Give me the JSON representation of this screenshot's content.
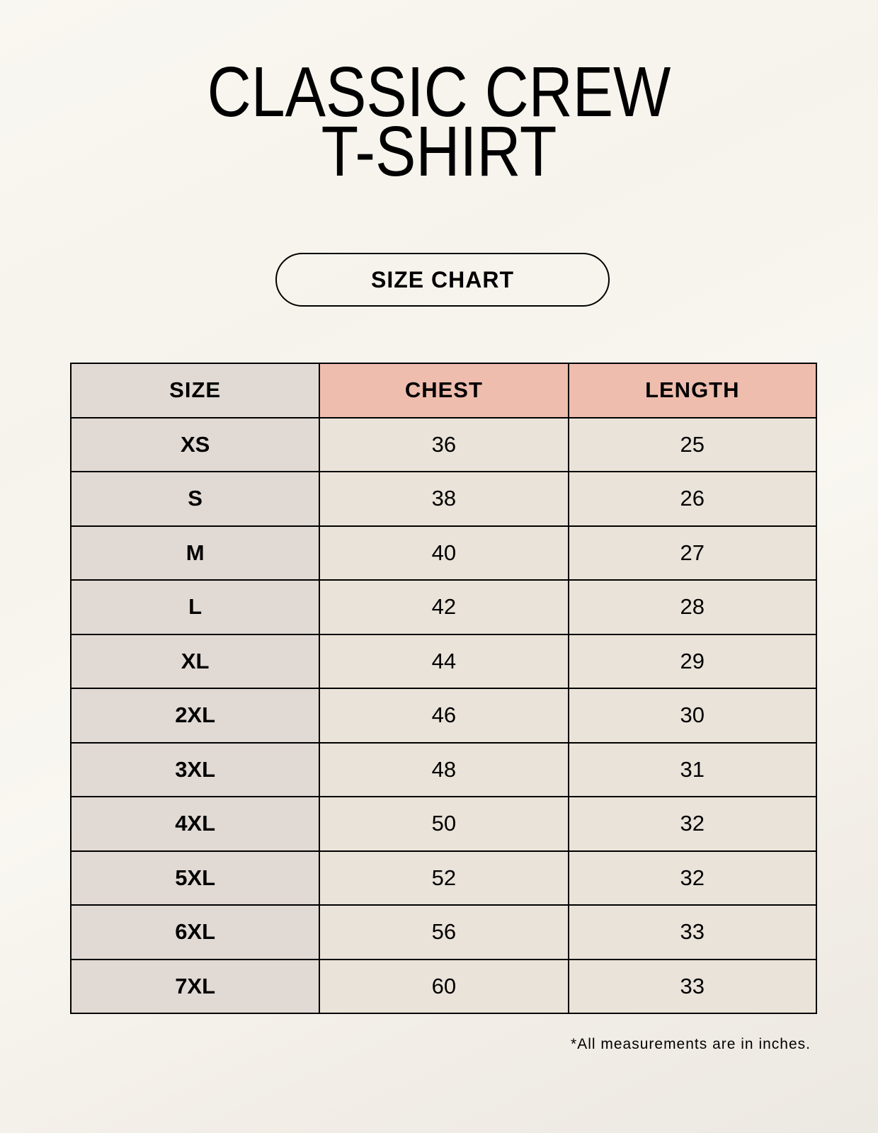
{
  "title": {
    "line1": "CLASSIC CREW",
    "line2": "T-SHIRT"
  },
  "badge": "SIZE CHART",
  "table": {
    "headers": [
      "SIZE",
      "CHEST",
      "LENGTH"
    ],
    "rows": [
      [
        "XS",
        "36",
        "25"
      ],
      [
        "S",
        "38",
        "26"
      ],
      [
        "M",
        "40",
        "27"
      ],
      [
        "L",
        "42",
        "28"
      ],
      [
        "XL",
        "44",
        "29"
      ],
      [
        "2XL",
        "46",
        "30"
      ],
      [
        "3XL",
        "48",
        "31"
      ],
      [
        "4XL",
        "50",
        "32"
      ],
      [
        "5XL",
        "52",
        "32"
      ],
      [
        "6XL",
        "56",
        "33"
      ],
      [
        "7XL",
        "60",
        "33"
      ]
    ]
  },
  "footnote": "*All measurements are in inches.",
  "colors": {
    "header_size": "#e1d9d3",
    "header_measure": "#eebdae",
    "cell": "#eae3d9",
    "background": "#f9f7f1"
  }
}
